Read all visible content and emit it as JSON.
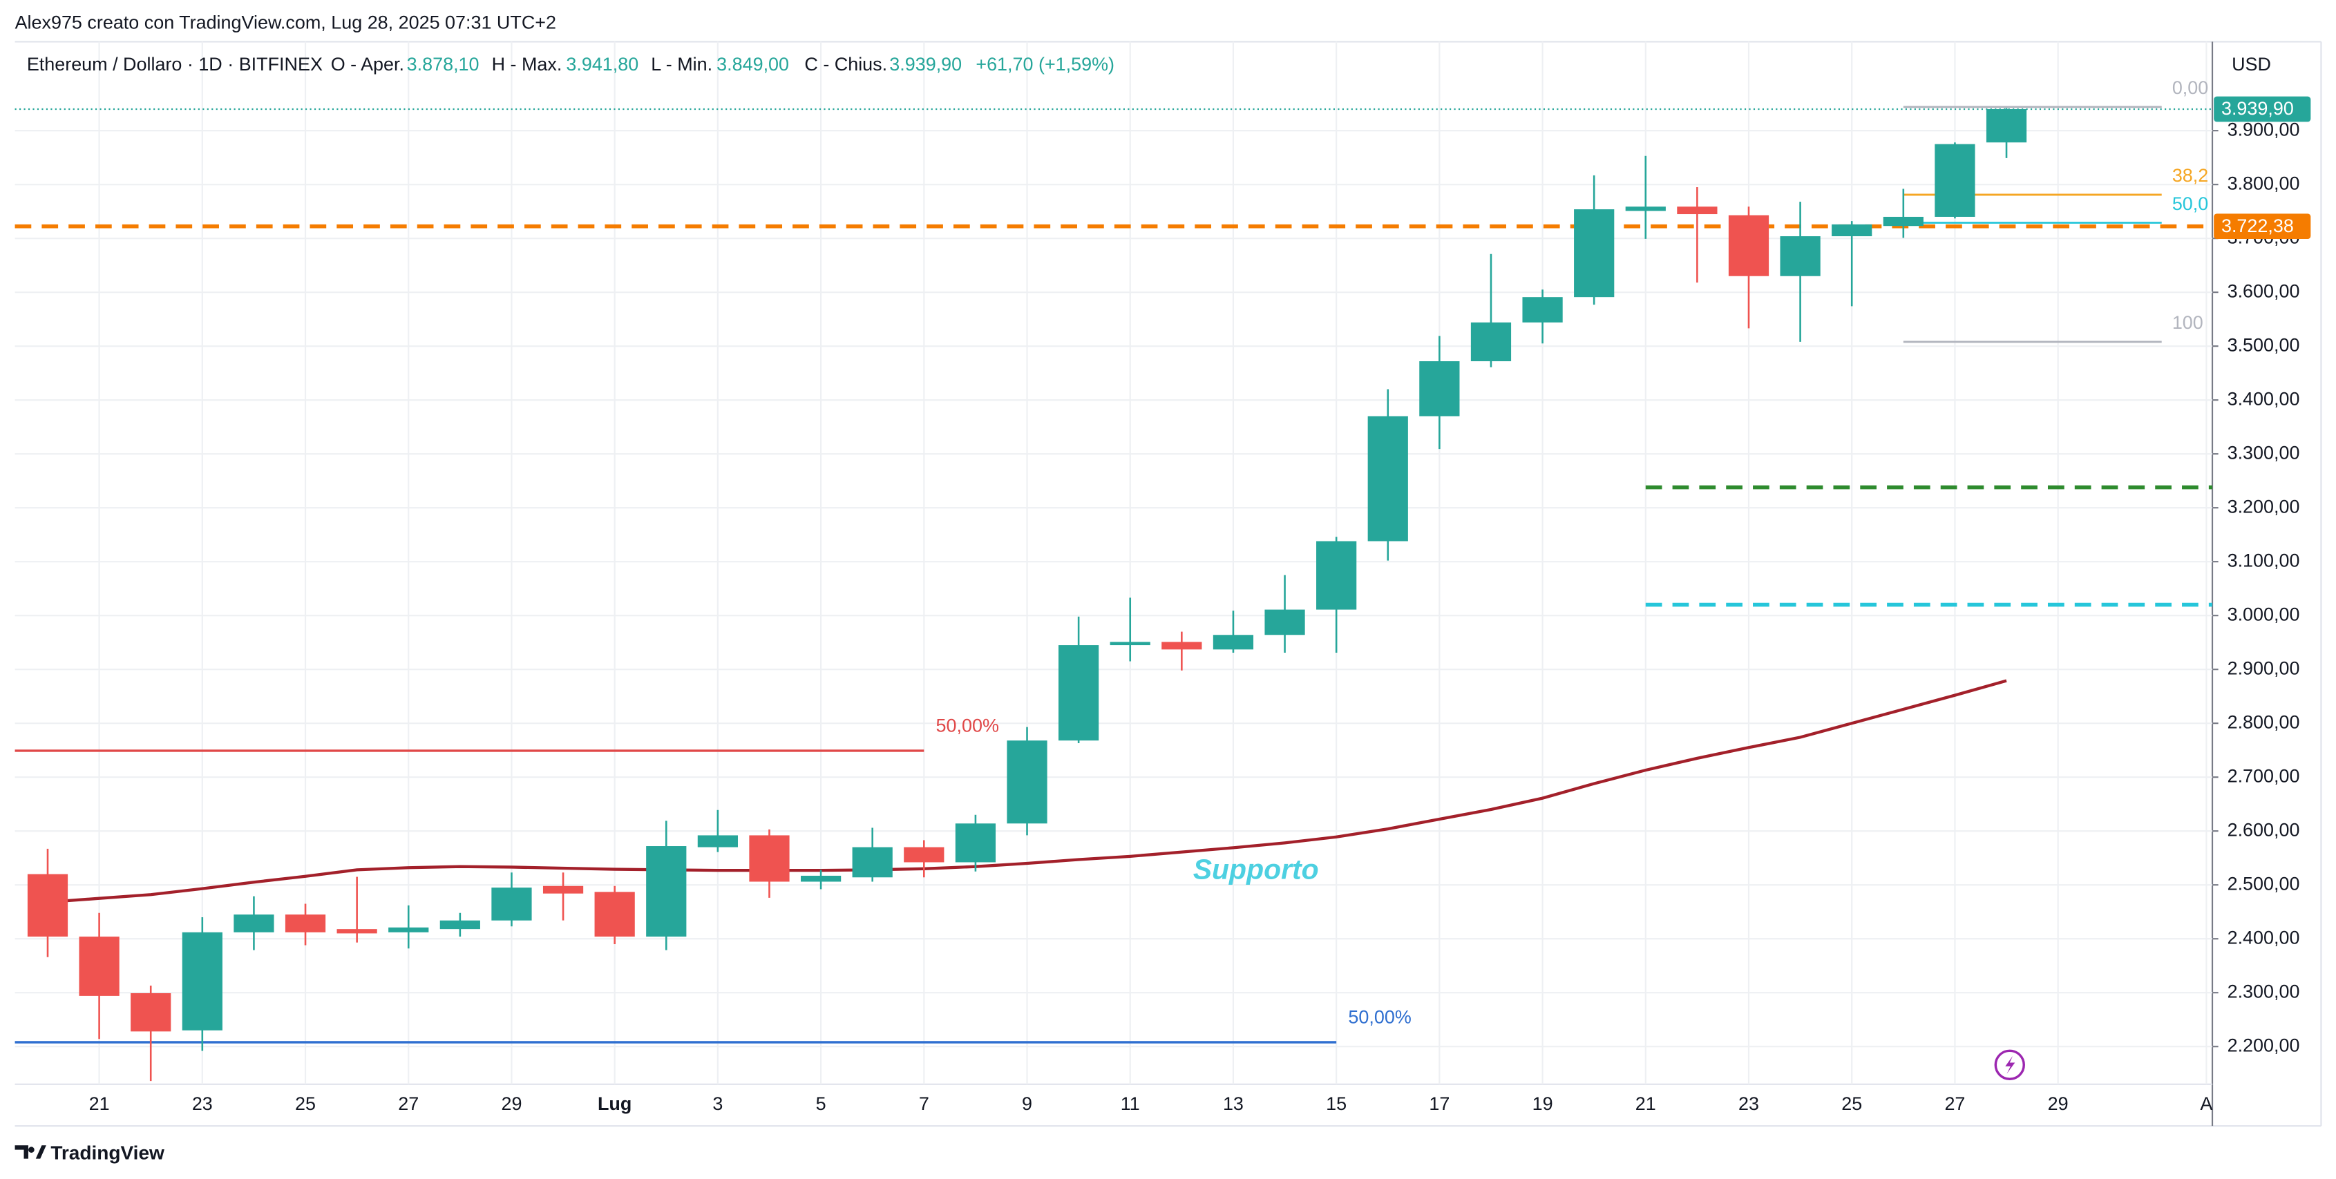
{
  "header": {
    "credit": "Alex975 creato con TradingView.com, Lug 28, 2025 07:31 UTC+2",
    "symbol": "Ethereum / Dollaro · 1D · BITFINEX",
    "open_label": "O - Aper.",
    "open": "3.878,10",
    "high_label": "H - Max.",
    "high": "3.941,80",
    "low_label": "L - Min.",
    "low": "3.849,00",
    "close_label": "C - Chius.",
    "close": "3.939,90",
    "change": "+61,70 (+1,59%)"
  },
  "footer": {
    "brand": "TradingView"
  },
  "chart_data": {
    "type": "candlestick",
    "currency": "USD",
    "categories": [
      null,
      "21",
      null,
      "23",
      null,
      "25",
      null,
      "27",
      null,
      "29",
      null,
      "Lug",
      null,
      "3",
      null,
      "5",
      null,
      "7",
      null,
      "9",
      null,
      "11",
      null,
      "13",
      null,
      "15",
      null,
      "17",
      null,
      "19",
      null,
      "21",
      null,
      "23",
      null,
      "25",
      null,
      "27",
      null,
      "29",
      null,
      null,
      "A"
    ],
    "open": [
      2520,
      2404,
      2299,
      2230,
      2412,
      2445,
      2418,
      2412,
      2418,
      2434,
      2498,
      2487,
      2404,
      2570,
      2592,
      2506,
      2514,
      2570,
      2542,
      2614,
      2768,
      2945,
      2951,
      2937,
      2964,
      3011,
      3138,
      3370,
      3472,
      3544,
      3591,
      3751,
      3759,
      3743,
      3630,
      3704,
      3723,
      3740,
      3878.1,
      null,
      null,
      null,
      null
    ],
    "high": [
      2567,
      2448,
      2313,
      2440,
      2479,
      2465,
      2515,
      2462,
      2448,
      2523,
      2523,
      2498,
      2619,
      2639,
      2603,
      2528,
      2606,
      2583,
      2630,
      2793,
      2998,
      3033,
      2970,
      3009,
      3075,
      3146,
      3420,
      3519,
      3671,
      3605,
      3817,
      3853,
      3795,
      3759,
      3768,
      3732,
      3792,
      3878,
      3941.8,
      null,
      null,
      null,
      null
    ],
    "low": [
      2366,
      2214,
      2136,
      2192,
      2379,
      2388,
      2393,
      2382,
      2404,
      2423,
      2434,
      2390,
      2379,
      2561,
      2476,
      2492,
      2506,
      2514,
      2525,
      2592,
      2763,
      2915,
      2898,
      2931,
      2931,
      2931,
      3102,
      3309,
      3461,
      3505,
      3577,
      3699,
      3618,
      3533,
      3508,
      3574,
      3701,
      3737,
      3849,
      null,
      null,
      null,
      null
    ],
    "close": [
      2404,
      2294,
      2228,
      2412,
      2445,
      2412,
      2410,
      2421,
      2434,
      2495,
      2484,
      2404,
      2572,
      2592,
      2506,
      2517,
      2570,
      2542,
      2614,
      2768,
      2945,
      2951,
      2937,
      2964,
      3011,
      3138,
      3370,
      3472,
      3544,
      3591,
      3754,
      3759,
      3745,
      3630,
      3704,
      3726,
      3740,
      3875,
      3939.9,
      null,
      null,
      null,
      null
    ],
    "ma": [
      2468,
      2475,
      2482,
      2493,
      2505,
      2516,
      2528,
      2532,
      2534,
      2533,
      2531,
      2529,
      2528,
      2527,
      2527,
      2527,
      2528,
      2530,
      2534,
      2540,
      2547,
      2553,
      2561,
      2569,
      2578,
      2589,
      2604,
      2622,
      2640,
      2661,
      2688,
      2713,
      2735,
      2755,
      2774,
      2800,
      2826,
      2852,
      2879,
      null,
      null,
      null,
      null
    ],
    "up_color": "#26a69a",
    "down_color": "#ef5350",
    "ma_color": "#a3202a",
    "ylim": [
      2130,
      4065
    ],
    "yticks": [
      {
        "value": 2200,
        "label": "2.200,00"
      },
      {
        "value": 2300,
        "label": "2.300,00"
      },
      {
        "value": 2400,
        "label": "2.400,00"
      },
      {
        "value": 2500,
        "label": "2.500,00"
      },
      {
        "value": 2600,
        "label": "2.600,00"
      },
      {
        "value": 2700,
        "label": "2.700,00"
      },
      {
        "value": 2800,
        "label": "2.800,00"
      },
      {
        "value": 2900,
        "label": "2.900,00"
      },
      {
        "value": 3000,
        "label": "3.000,00"
      },
      {
        "value": 3100,
        "label": "3.100,00"
      },
      {
        "value": 3200,
        "label": "3.200,00"
      },
      {
        "value": 3300,
        "label": "3.300,00"
      },
      {
        "value": 3400,
        "label": "3.400,00"
      },
      {
        "value": 3500,
        "label": "3.500,00"
      },
      {
        "value": 3600,
        "label": "3.600,00"
      },
      {
        "value": 3700,
        "label": "3.700,00"
      },
      {
        "value": 3800,
        "label": "3.800,00"
      },
      {
        "value": 3900,
        "label": "3.900,00"
      }
    ],
    "grid": true,
    "last_price": {
      "value": 3939.9,
      "label": "3.939,90",
      "color": "#26a69a"
    },
    "levels": [
      {
        "value": 3722.38,
        "label": "3.722,38",
        "color": "#f57c00",
        "style": "dashed"
      },
      {
        "value": 3238,
        "color": "#2e8b2e",
        "style": "dashed"
      },
      {
        "value": 3020,
        "color": "#26c6da",
        "style": "dashed"
      },
      {
        "value": 2749,
        "label": "50,00%",
        "color": "#e04848",
        "style": "solid"
      },
      {
        "value": 2208,
        "label": "50,00%",
        "color": "#2f6fd0",
        "style": "solid"
      }
    ],
    "fib": [
      {
        "value": 3944,
        "label": "0,00",
        "color": "#b2b5be"
      },
      {
        "value": 3781,
        "label": "38,2",
        "color": "#f5a623"
      },
      {
        "value": 3729,
        "label": "50,0",
        "color": "#26c6da"
      },
      {
        "value": 3508,
        "label": "100",
        "color": "#b2b5be"
      }
    ],
    "annotation": "Supporto"
  }
}
